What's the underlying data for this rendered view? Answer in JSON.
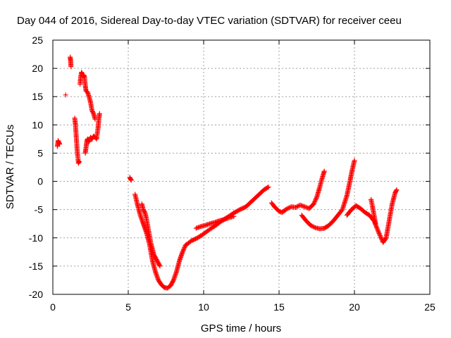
{
  "chart_data": {
    "type": "scatter",
    "title": "Day 044 of 2016, Sidereal Day-to-day VTEC variation (SDTVAR) for receiver ceeu",
    "xlabel": "GPS time / hours",
    "ylabel": "SDTVAR / TECUs",
    "xlim": [
      0,
      25
    ],
    "ylim": [
      -20,
      25
    ],
    "xticks": [
      "0",
      "5",
      "10",
      "15",
      "20",
      "25"
    ],
    "yticks": [
      "-20",
      "-15",
      "-10",
      "-5",
      "0",
      "5",
      "10",
      "15",
      "20",
      "25"
    ],
    "grid": true,
    "marker": "plus",
    "color": "#ff0000",
    "series": [
      {
        "name": "SDTVAR",
        "segments": [
          {
            "x": [
              0.3,
              0.35,
              0.4,
              0.45
            ],
            "y": [
              6.2,
              7.2,
              6.9,
              6.6
            ]
          },
          {
            "x": [
              0.85
            ],
            "y": [
              15.3
            ]
          },
          {
            "x": [
              1.15,
              1.18,
              1.2
            ],
            "y": [
              22.0,
              21.3,
              20.3
            ]
          },
          {
            "x": [
              1.45,
              1.5,
              1.55,
              1.6,
              1.65,
              1.7,
              1.75
            ],
            "y": [
              11.2,
              10.0,
              8.0,
              6.0,
              4.5,
              3.2,
              3.5
            ]
          },
          {
            "x": [
              1.8,
              1.85,
              1.9,
              1.95,
              2.0,
              2.05,
              2.1,
              2.15,
              2.2,
              2.3,
              2.4,
              2.5,
              2.6,
              2.7,
              2.8
            ],
            "y": [
              17.2,
              18.5,
              19.3,
              19.0,
              18.6,
              18.8,
              18.5,
              17.0,
              16.0,
              15.8,
              15.0,
              14.0,
              12.5,
              12.0,
              11.0
            ]
          },
          {
            "x": [
              2.15,
              2.2,
              2.25,
              2.3,
              2.4,
              2.5,
              2.6,
              2.7,
              2.8,
              2.9,
              3.0,
              3.05,
              3.1
            ],
            "y": [
              5.0,
              6.0,
              7.0,
              7.5,
              7.0,
              7.8,
              7.5,
              8.0,
              7.8,
              7.5,
              9.5,
              11.0,
              12.0
            ]
          },
          {
            "x": [
              5.1,
              5.15,
              5.2
            ],
            "y": [
              0.7,
              0.4,
              0.2
            ]
          },
          {
            "x": [
              5.45,
              5.6,
              5.8,
              6.0,
              6.2,
              6.4,
              6.6,
              6.8,
              7.0,
              7.2,
              7.4,
              7.6,
              7.8,
              8.0,
              8.2,
              8.4,
              8.6,
              8.8
            ],
            "y": [
              -2.3,
              -4.0,
              -6.0,
              -7.5,
              -9.0,
              -11.0,
              -14.0,
              -16.0,
              -17.5,
              -18.3,
              -18.8,
              -18.9,
              -18.5,
              -17.5,
              -16.0,
              -14.0,
              -12.5,
              -11.3
            ]
          },
          {
            "x": [
              5.9,
              6.0,
              6.1,
              6.2,
              6.3,
              6.4,
              6.5,
              6.6,
              6.7,
              6.8,
              6.9,
              7.0,
              7.1
            ],
            "y": [
              -4.0,
              -5.0,
              -5.5,
              -6.5,
              -8.0,
              -9.5,
              -11.0,
              -12.0,
              -13.0,
              -13.5,
              -14.0,
              -14.5,
              -15.0
            ]
          },
          {
            "x": [
              9.5,
              9.8,
              10.1,
              10.4,
              10.7,
              11.0,
              11.3,
              11.6,
              12.0
            ],
            "y": [
              -8.3,
              -8.0,
              -7.8,
              -7.5,
              -7.3,
              -7.0,
              -6.8,
              -6.5,
              -6.2
            ]
          },
          {
            "x": [
              8.8,
              9.2,
              9.6,
              10.0,
              10.4,
              10.8,
              11.2,
              11.6,
              12.0,
              12.4,
              12.8,
              13.2,
              13.6,
              14.0,
              14.3
            ],
            "y": [
              -11.3,
              -10.5,
              -10.0,
              -9.3,
              -8.5,
              -7.8,
              -7.0,
              -6.3,
              -5.6,
              -5.0,
              -4.5,
              -3.5,
              -2.5,
              -1.5,
              -1.0
            ]
          },
          {
            "x": [
              14.5,
              14.7,
              15.0,
              15.2,
              15.5,
              15.8,
              16.1,
              16.4,
              16.7,
              17.0,
              17.3,
              17.5,
              17.7,
              17.85,
              18.0
            ],
            "y": [
              -3.8,
              -4.5,
              -5.3,
              -5.5,
              -4.9,
              -4.5,
              -4.6,
              -4.2,
              -4.5,
              -4.8,
              -4.0,
              -2.8,
              -1.0,
              0.5,
              1.8
            ]
          },
          {
            "x": [
              16.5,
              16.8,
              17.1,
              17.4,
              17.7,
              18.0,
              18.3,
              18.6,
              18.9,
              19.2,
              19.5,
              19.7,
              19.85,
              20.0
            ],
            "y": [
              -6.0,
              -7.0,
              -7.8,
              -8.2,
              -8.4,
              -8.3,
              -7.8,
              -7.0,
              -6.0,
              -5.0,
              -2.5,
              0.0,
              2.0,
              3.7
            ]
          },
          {
            "x": [
              19.5,
              19.8,
              20.1,
              20.4,
              20.7,
              21.0,
              21.3,
              21.6,
              21.9,
              22.1,
              22.3,
              22.5,
              22.7,
              22.8
            ],
            "y": [
              -6.0,
              -5.0,
              -4.3,
              -4.8,
              -5.5,
              -6.0,
              -7.0,
              -9.0,
              -10.8,
              -10.0,
              -7.0,
              -4.0,
              -2.0,
              -1.5
            ]
          },
          {
            "x": [
              21.1,
              21.2,
              21.3,
              21.4
            ],
            "y": [
              -3.2,
              -4.5,
              -6.0,
              -7.5
            ]
          }
        ]
      }
    ]
  }
}
